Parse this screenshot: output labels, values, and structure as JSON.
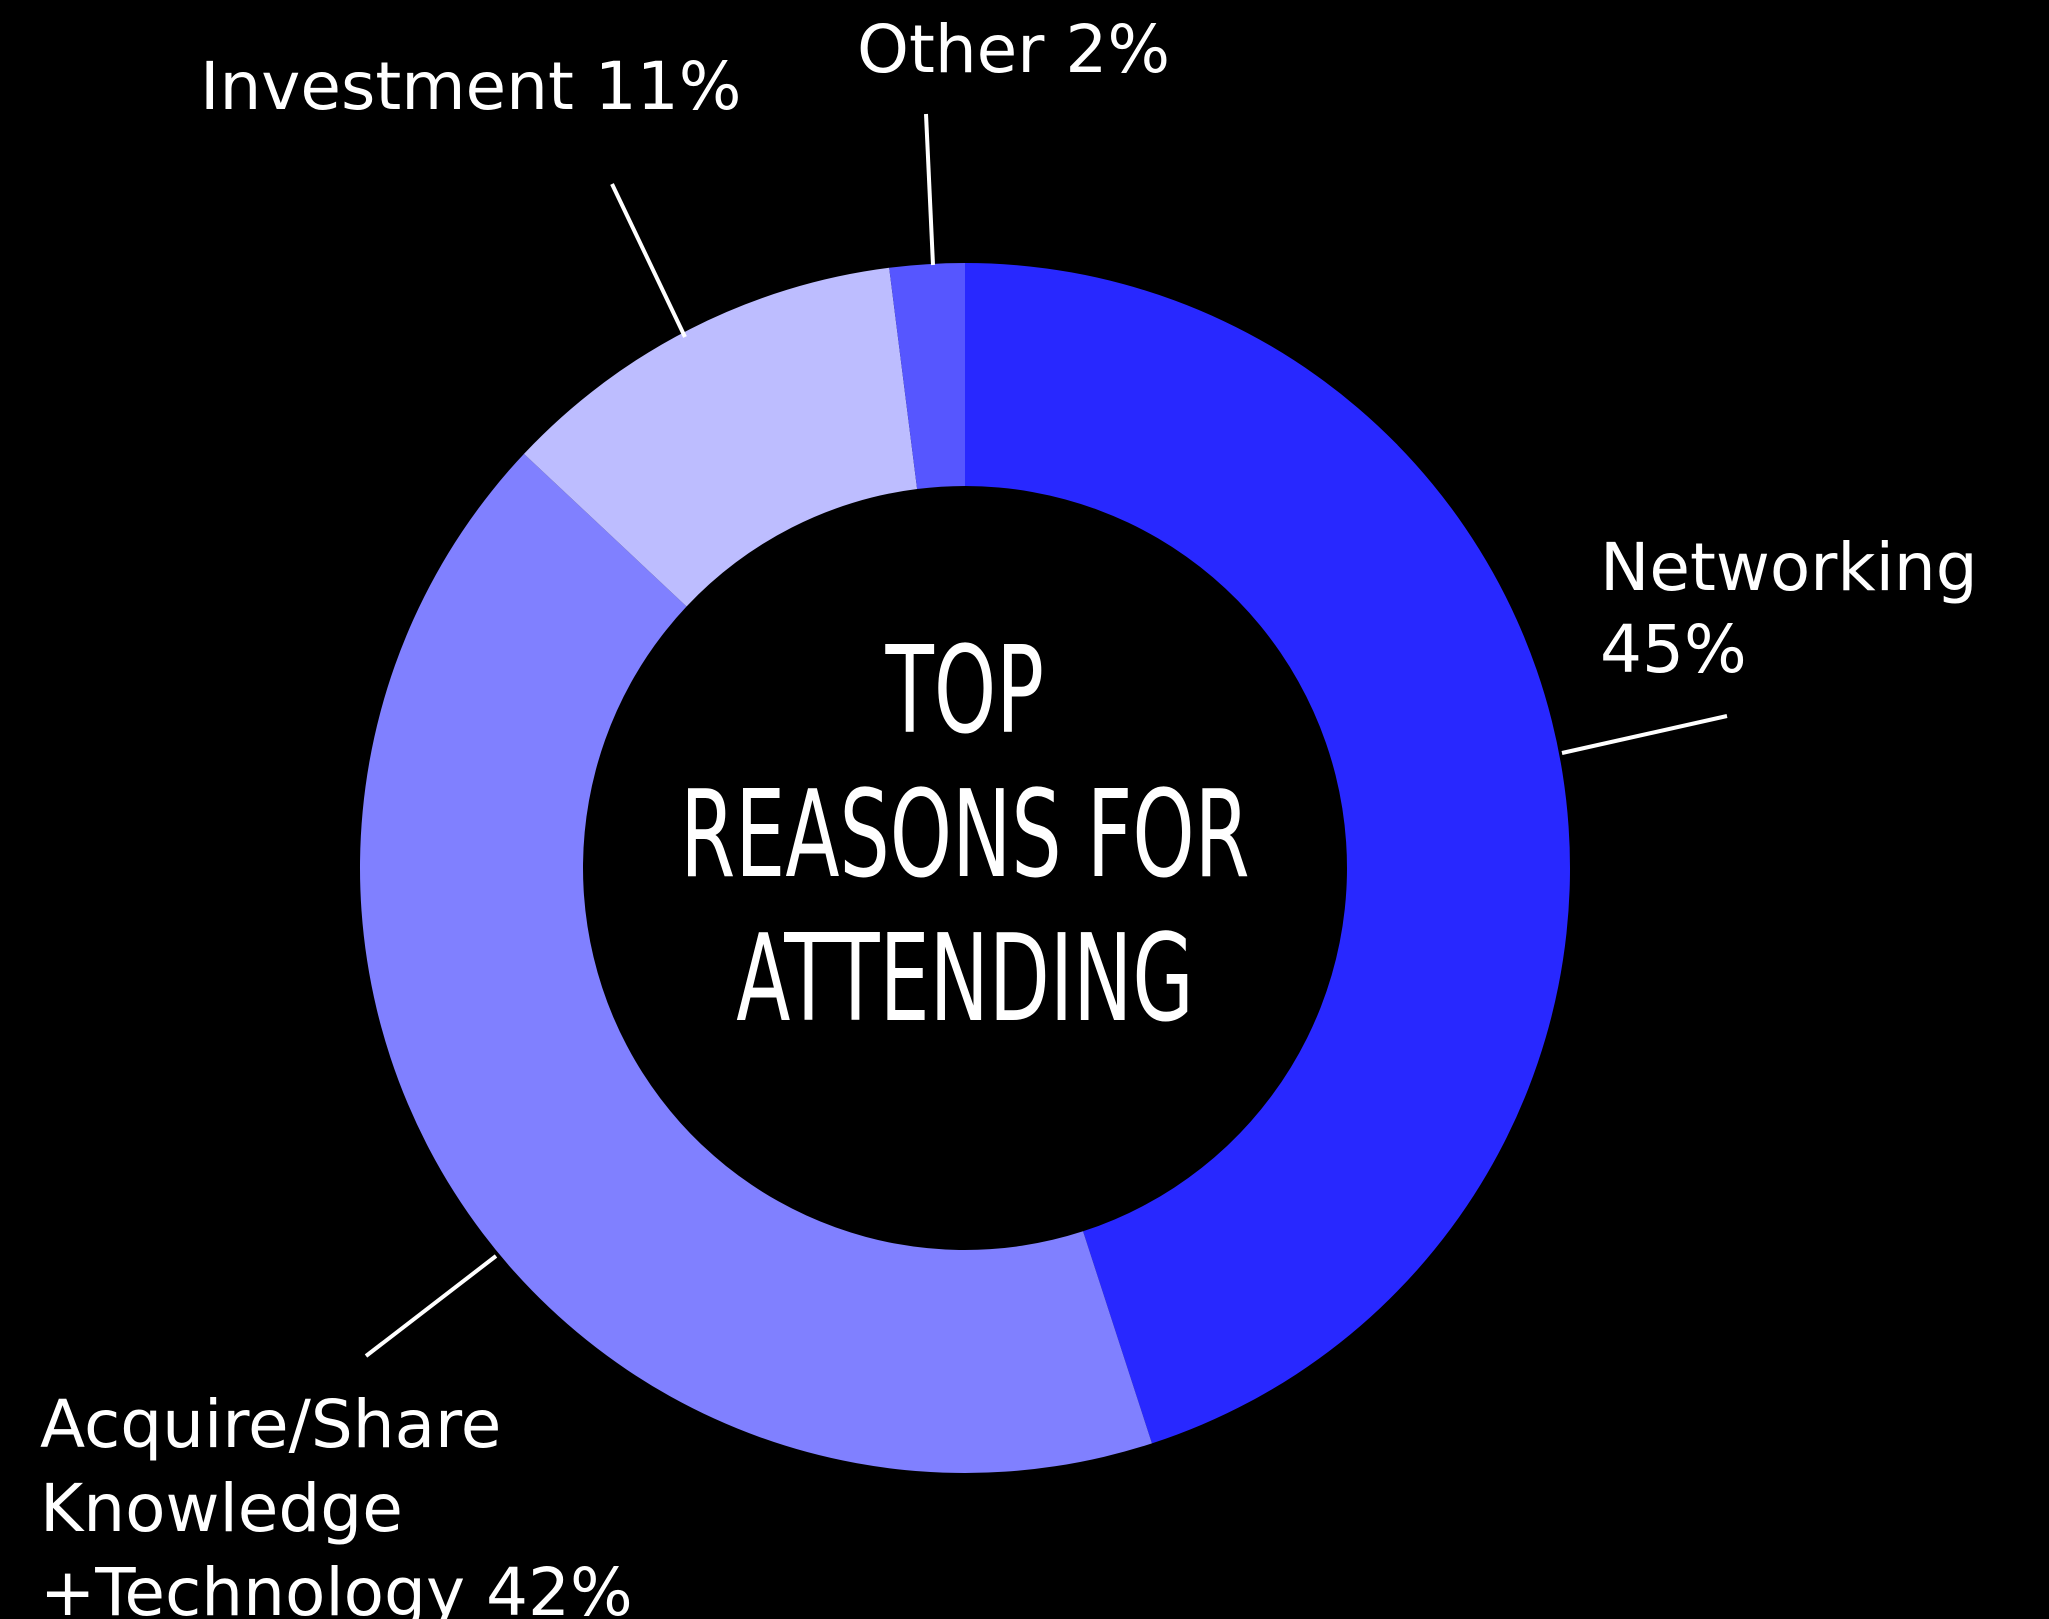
{
  "chart_data": {
    "type": "pie",
    "center_title": [
      "TOP",
      "REASONS FOR",
      "ATTENDING"
    ],
    "categories": [
      "Networking",
      "Acquire/Share Knowledge +Technology",
      "Investment",
      "Other"
    ],
    "values": [
      45,
      42,
      11,
      2
    ],
    "colors": [
      "#2828ff",
      "#8080ff",
      "#bdbdff",
      "#5656ff"
    ],
    "labels": [
      {
        "lines": [
          "Networking",
          "45%"
        ]
      },
      {
        "lines": [
          "Acquire/Share",
          "Knowledge",
          "+Technology 42%"
        ]
      },
      {
        "lines": [
          "Investment 11%"
        ]
      },
      {
        "lines": [
          "Other 2%"
        ]
      }
    ]
  }
}
